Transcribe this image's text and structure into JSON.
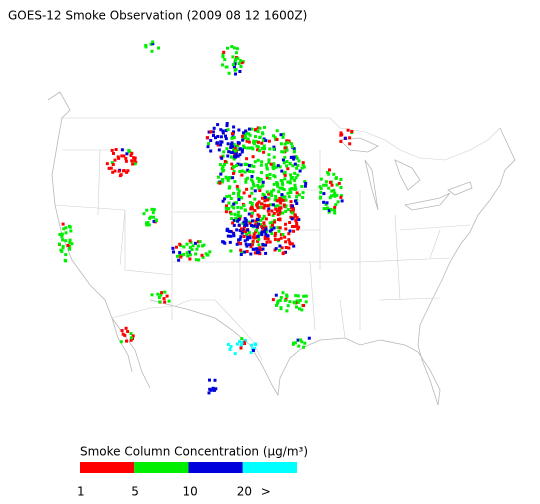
{
  "title": "GOES-12 Smoke Observation (2009 08 12  1600Z)",
  "legend": {
    "title": "Smoke Column Concentration (μg/m³)",
    "colors": [
      "#ff0000",
      "#00ee00",
      "#0000dd",
      "#00ffff"
    ],
    "labels": [
      "1",
      "5",
      "10",
      "20",
      ">"
    ]
  }
}
